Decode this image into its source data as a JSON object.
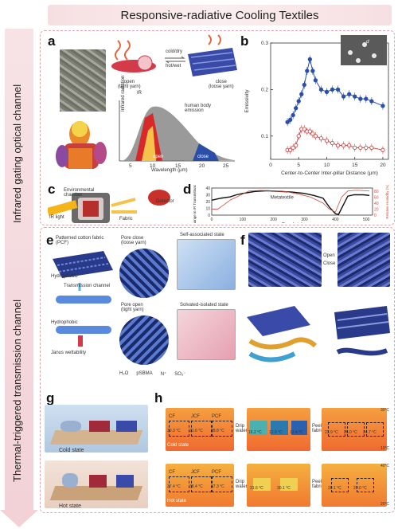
{
  "title": "Responsive-radiative Cooling Textiles",
  "side_labels": {
    "top": "Infrared gating optical channel",
    "bottom": "Thermal-triggered transmission channel"
  },
  "panels": {
    "a": {
      "letter": "a",
      "open_label": "open\n(tight yarn)",
      "close_label": "close\n(loose yarn)",
      "cold_dry": "cold/dry",
      "hot_wet": "hot/wet",
      "ir_label": "IR",
      "plot_ylabel": "Infrared radiation",
      "plot_xlabel": "Wavelength (μm)",
      "emission_label": "human body\nemission",
      "open_band": "open",
      "close_band": "close",
      "xticks": [
        "5",
        "10",
        "15",
        "20",
        "25"
      ]
    },
    "b": {
      "letter": "b",
      "inset_label": "d"
    },
    "c": {
      "letter": "c",
      "chamber": "Environmental\nchamber",
      "detector": "Detector",
      "ir_light": "IR light",
      "fabric": "Fabric"
    },
    "d": {
      "letter": "d",
      "curve_label": "Metatextile"
    },
    "e": {
      "letter": "e",
      "pcf": "Patterned cotton fabric\n(PCF)",
      "hydrophobic": "Hydrophobic",
      "transmission": "Transmission channel",
      "hydrophobic2": "Hydrophobic",
      "janus": "Janus wettability",
      "pore_close": "Pore close\n(loose yarn)",
      "pore_open": "Pore open\n(tight yarn)",
      "self_assoc": "Self-associated state",
      "solvated": "Solvated-isolated state",
      "legend": [
        "H₂O",
        "pSBMA",
        "N⁺",
        "SO₃⁻"
      ]
    },
    "f": {
      "letter": "f",
      "open": "Open",
      "close": "Close"
    },
    "g": {
      "letter": "g",
      "cold": "Cold state",
      "hot": "Hot state"
    },
    "h": {
      "letter": "h",
      "cold_state": "Cold state",
      "hot_state": "Hot state",
      "drip": "Drip\nwater",
      "peel": "Peel\nfabric",
      "fabrics": [
        "CF",
        "JCF",
        "PCF"
      ],
      "cold_temps_1": [
        "30.3 °C",
        "21.6 °C",
        "28.8 °C"
      ],
      "cold_temps_2": [
        "16.2 °C",
        "12.9 °C",
        "12.4 °C"
      ],
      "cold_temps_3": [
        "23.9 °C",
        "26.0 °C",
        "24.7 °C"
      ],
      "hot_temps_1": [
        "37.4 °C",
        "38.4 °C",
        "37.3 °C"
      ],
      "hot_temps_2": [
        "31.6 °C",
        "30.1 °C"
      ],
      "hot_temps_3": [
        "28.1 °C",
        "29.0 °C"
      ],
      "scale_cold": [
        "30°C",
        "10°C"
      ],
      "scale_hot": [
        "40°C",
        "20°C"
      ]
    }
  },
  "chart_data": [
    {
      "type": "scatter",
      "panel": "b",
      "xlabel": "Center-to-Center Inter-pillar Distance (μm)",
      "ylabel": "Emissivity",
      "xlim": [
        0,
        21
      ],
      "ylim": [
        0.05,
        0.3
      ],
      "xticks": [
        0,
        5,
        10,
        15,
        20
      ],
      "yticks": [
        0.1,
        0.2,
        0.3
      ],
      "series": [
        {
          "color": "#2b4fa8",
          "x": [
            3,
            3.5,
            4,
            4.5,
            5,
            5.5,
            6,
            6.5,
            7,
            7.5,
            8,
            9,
            10,
            11,
            12,
            13,
            14,
            15,
            16,
            17,
            18,
            20
          ],
          "y": [
            0.13,
            0.135,
            0.145,
            0.16,
            0.175,
            0.19,
            0.21,
            0.24,
            0.265,
            0.24,
            0.22,
            0.2,
            0.195,
            0.2,
            0.2,
            0.185,
            0.19,
            0.185,
            0.18,
            0.18,
            0.175,
            0.165
          ]
        },
        {
          "color": "#c94a4a",
          "x": [
            3,
            3.5,
            4,
            4.5,
            5,
            5.5,
            6,
            6.5,
            7,
            7.5,
            8,
            9,
            10,
            11,
            12,
            13,
            14,
            15,
            16,
            17,
            18,
            20
          ],
          "y": [
            0.07,
            0.07,
            0.075,
            0.08,
            0.1,
            0.115,
            0.115,
            0.11,
            0.11,
            0.105,
            0.1,
            0.095,
            0.09,
            0.085,
            0.08,
            0.08,
            0.08,
            0.075,
            0.075,
            0.075,
            0.075,
            0.07
          ]
        }
      ]
    },
    {
      "type": "line",
      "panel": "d",
      "xlabel": "Time (min)",
      "ylabel": "Change in IR Transmittance (%)",
      "y2label": "Relative Humidity (%)",
      "xlim": [
        0,
        520
      ],
      "ylim": [
        0,
        40
      ],
      "y2lim": [
        0,
        90
      ],
      "xticks": [
        0,
        100,
        200,
        300,
        400,
        500
      ],
      "yticks": [
        0,
        10,
        20,
        30,
        40
      ],
      "y2ticks": [
        0,
        20,
        40,
        60,
        80
      ],
      "series": [
        {
          "name": "Metatextile",
          "color": "#111111",
          "x": [
            0,
            30,
            60,
            80,
            100,
            140,
            180,
            220,
            260,
            300,
            330,
            360,
            380,
            400,
            410,
            420,
            440,
            460,
            490,
            510
          ],
          "y": [
            22,
            25,
            27,
            30,
            32,
            35,
            36,
            35,
            34,
            32,
            29,
            25,
            12,
            2,
            1,
            10,
            28,
            30,
            30,
            29
          ]
        },
        {
          "color": "#d44a3a",
          "axis": "y2",
          "x": [
            0,
            20,
            40,
            60,
            80,
            100,
            120,
            160,
            200,
            240,
            280,
            320,
            340,
            360,
            380,
            400,
            420,
            440,
            460,
            480,
            510
          ],
          "y": [
            20,
            20,
            35,
            50,
            60,
            70,
            80,
            82,
            80,
            78,
            70,
            60,
            50,
            40,
            20,
            10,
            60,
            80,
            82,
            82,
            80
          ]
        }
      ]
    }
  ]
}
